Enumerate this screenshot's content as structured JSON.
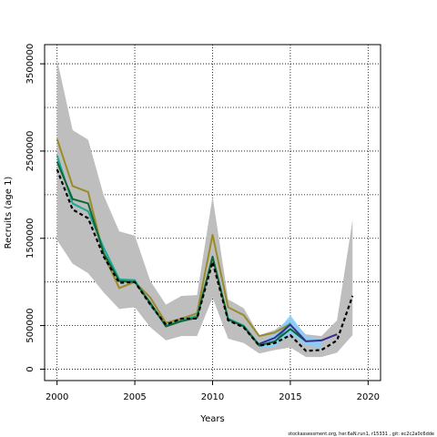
{
  "chart_data": {
    "type": "line",
    "xlabel": "Years",
    "ylabel": "Recruits (age 1)",
    "footer": "stockassessment.org, her.6aN.run1, r15331 , git: ec2c2a0c6dde",
    "xlim": [
      1999.2,
      2020.8
    ],
    "ylim": [
      -130000,
      3720000
    ],
    "x_ticks": [
      2000,
      2005,
      2010,
      2015,
      2020
    ],
    "x_tick_labels": [
      "2000",
      "2005",
      "2010",
      "2015",
      "2020"
    ],
    "y_ticks": [
      0,
      500000,
      1500000,
      2500000,
      3500000
    ],
    "y_tick_labels": [
      "0",
      "500000",
      "1500000",
      "2500000",
      "3500000"
    ],
    "grid_x": [
      2000,
      2005,
      2010,
      2015,
      2020
    ],
    "grid_y": [
      0,
      500000,
      1000000,
      1500000,
      2000000,
      2500000,
      3000000,
      3500000
    ],
    "grid": true,
    "colors": {
      "band": "#bebebe",
      "band_light": "#87cefa",
      "olive": "#9a8b2a",
      "teal": "#1aaa9a",
      "darkgreen": "#116633",
      "purple": "#3b2d8c",
      "black": "#000000"
    },
    "confidence_band": {
      "x": [
        2000,
        2001,
        2002,
        2003,
        2004,
        2005,
        2006,
        2007,
        2008,
        2009,
        2010,
        2011,
        2012,
        2013,
        2014,
        2015,
        2016,
        2017,
        2018,
        2019
      ],
      "upper": [
        3550000,
        2740000,
        2630000,
        1990000,
        1580000,
        1530000,
        1010000,
        740000,
        840000,
        850000,
        1980000,
        800000,
        700000,
        390000,
        450000,
        580000,
        400000,
        380000,
        560000,
        1710000
      ],
      "lower": [
        1480000,
        1210000,
        1100000,
        880000,
        690000,
        710000,
        480000,
        330000,
        380000,
        380000,
        820000,
        350000,
        300000,
        180000,
        220000,
        250000,
        140000,
        140000,
        190000,
        390000
      ]
    },
    "light_band": {
      "x": [
        2013,
        2014,
        2015,
        2016,
        2017
      ],
      "upper": [
        300000,
        400000,
        620000,
        380000,
        340000
      ],
      "lower": [
        240000,
        260000,
        410000,
        270000,
        250000
      ]
    },
    "series": [
      {
        "color": "olive",
        "style": "solid",
        "x": [
          2000,
          2001,
          2002,
          2003,
          2004,
          2005,
          2006,
          2007,
          2008,
          2009,
          2010,
          2011,
          2012,
          2013,
          2014,
          2015
        ],
        "values": [
          2640000,
          2100000,
          2030000,
          1310000,
          930000,
          1000000,
          820000,
          530000,
          580000,
          640000,
          1540000,
          710000,
          620000,
          380000,
          420000,
          520000
        ]
      },
      {
        "color": "teal",
        "style": "solid",
        "x": [
          2000,
          2001,
          2002,
          2003,
          2004,
          2005,
          2006,
          2007,
          2008,
          2009,
          2010,
          2011,
          2012,
          2013,
          2014,
          2015
        ],
        "values": [
          2450000,
          1900000,
          1810000,
          1390000,
          1030000,
          1020000,
          740000,
          500000,
          560000,
          610000,
          1280000,
          580000,
          500000,
          280000,
          310000,
          530000
        ]
      },
      {
        "color": "darkgreen",
        "style": "solid",
        "x": [
          2000,
          2001,
          2002,
          2003,
          2004,
          2005,
          2006,
          2007,
          2008,
          2009,
          2010,
          2011,
          2012,
          2013,
          2014,
          2015,
          2016
        ],
        "values": [
          2380000,
          1950000,
          1900000,
          1330000,
          1010000,
          1000000,
          760000,
          490000,
          550000,
          590000,
          1290000,
          570000,
          490000,
          270000,
          320000,
          460000,
          320000
        ]
      },
      {
        "color": "purple",
        "style": "solid",
        "x": [
          2013,
          2014,
          2015,
          2016,
          2017,
          2018
        ],
        "values": [
          290000,
          360000,
          510000,
          320000,
          330000,
          400000
        ]
      },
      {
        "color": "black",
        "style": "dashed",
        "x": [
          2000,
          2001,
          2002,
          2003,
          2004,
          2005,
          2006,
          2007,
          2008,
          2009,
          2010,
          2011,
          2012,
          2013,
          2014,
          2015,
          2016,
          2017,
          2018,
          2019
        ],
        "values": [
          2290000,
          1830000,
          1730000,
          1290000,
          990000,
          1000000,
          740000,
          510000,
          580000,
          580000,
          1230000,
          560000,
          480000,
          270000,
          300000,
          390000,
          210000,
          220000,
          330000,
          840000
        ]
      }
    ]
  }
}
